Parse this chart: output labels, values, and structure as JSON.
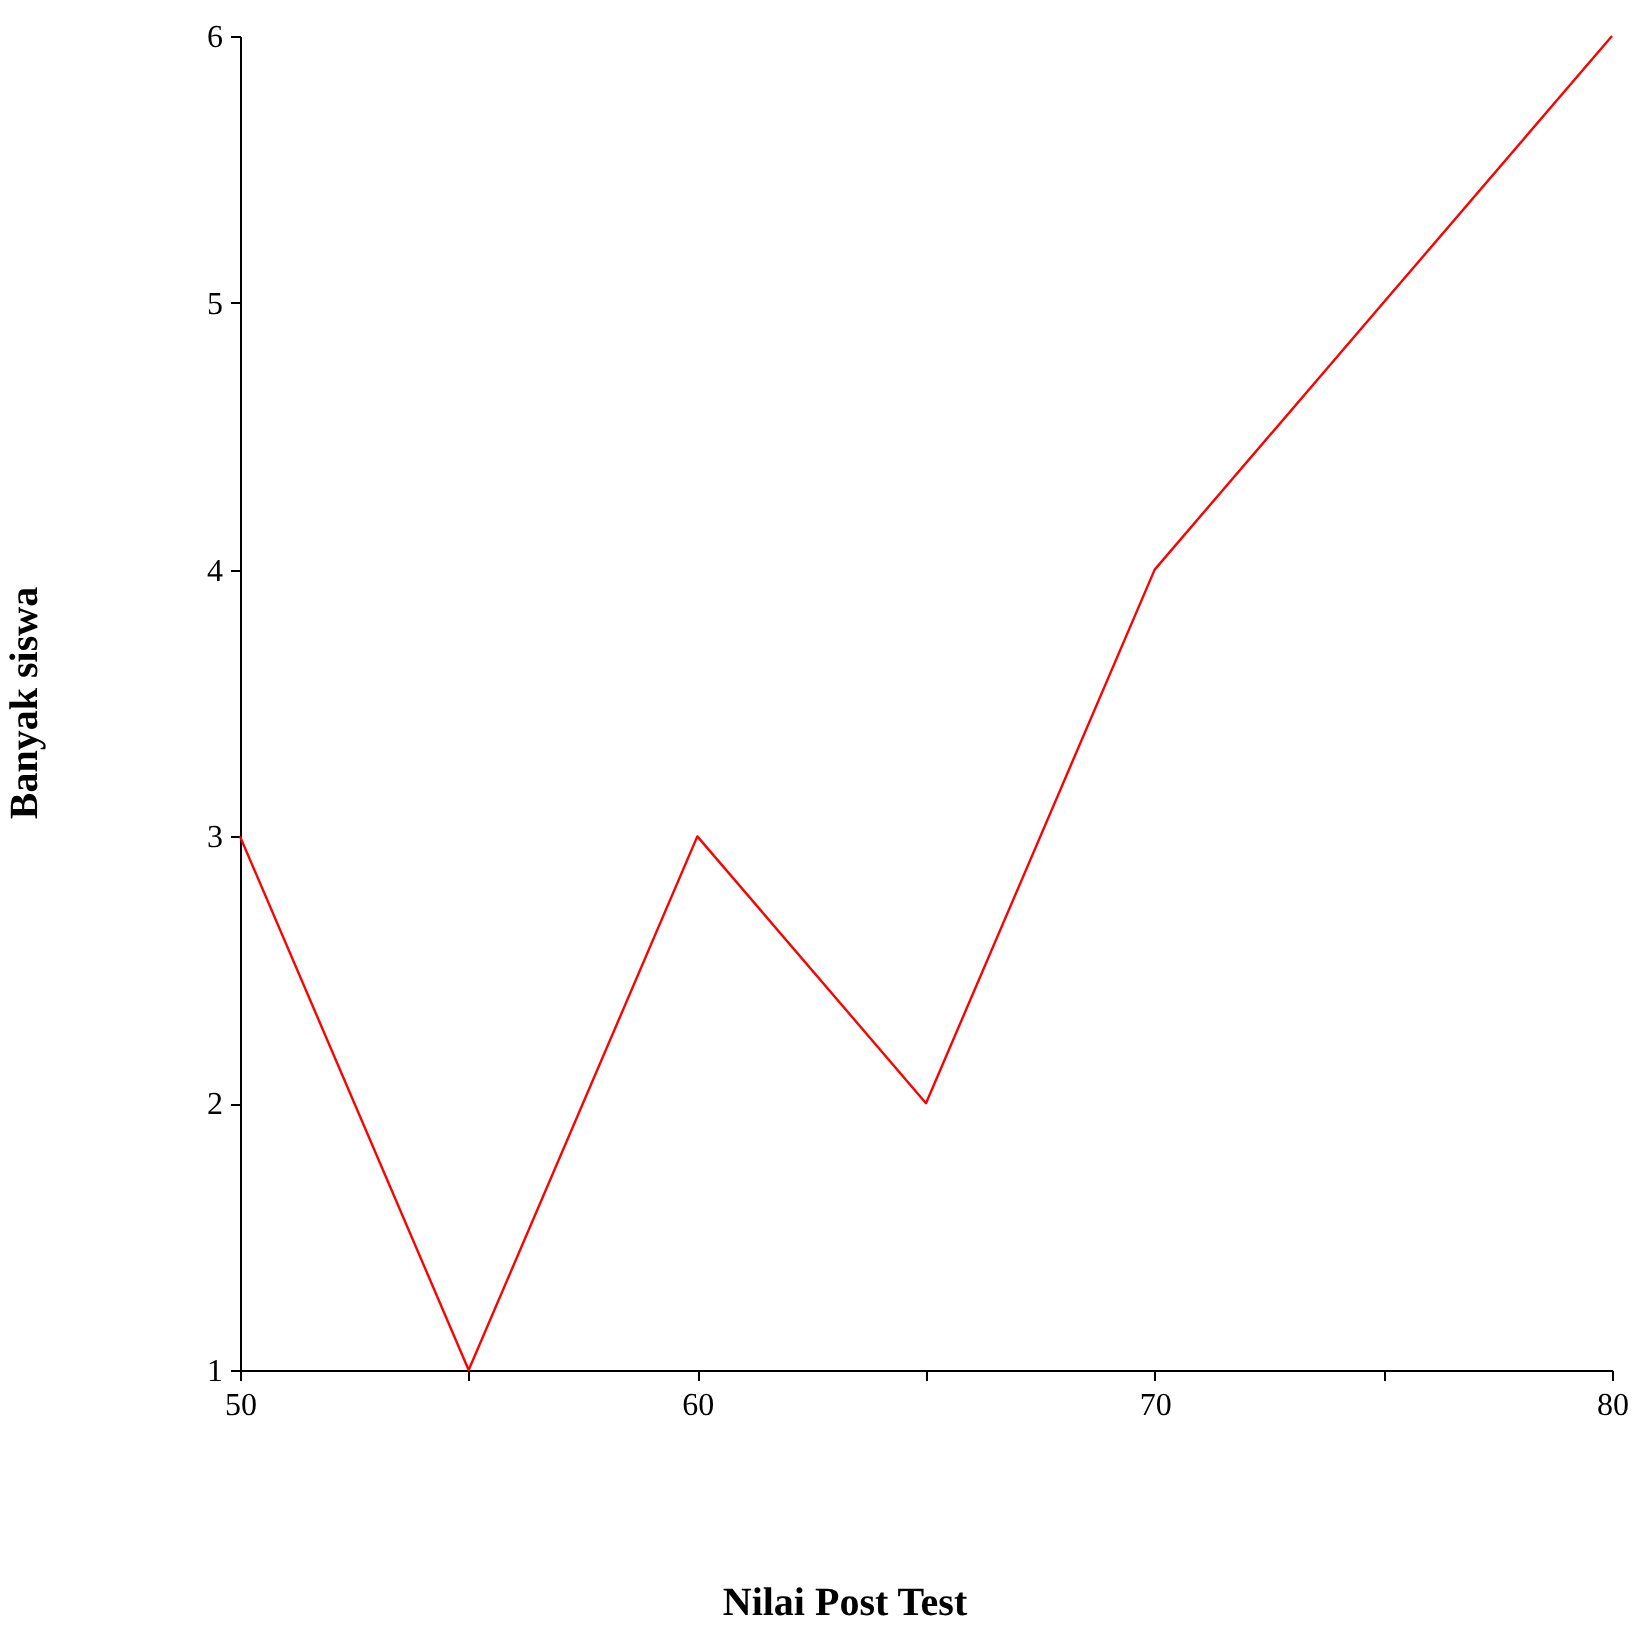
{
  "chart_data": {
    "type": "line",
    "xlabel": "Nilai Post Test",
    "ylabel": "Banyak siswa",
    "x": [
      50,
      55,
      60,
      65,
      70,
      75,
      80
    ],
    "series": [
      {
        "color": "#ff0000",
        "values": [
          3,
          1,
          3,
          2,
          4,
          5,
          6
        ]
      }
    ],
    "xlim": [
      50,
      80
    ],
    "xticks": [
      50,
      {
        "value": 55,
        "label": null
      },
      60,
      {
        "value": 65,
        "label": null
      },
      70,
      {
        "value": 75,
        "label": null
      },
      80
    ],
    "ylim": [
      1,
      6
    ],
    "yticks": [
      1,
      2,
      3,
      4,
      5,
      6
    ],
    "grid": false,
    "marker": "none",
    "line_style": "solid"
  }
}
